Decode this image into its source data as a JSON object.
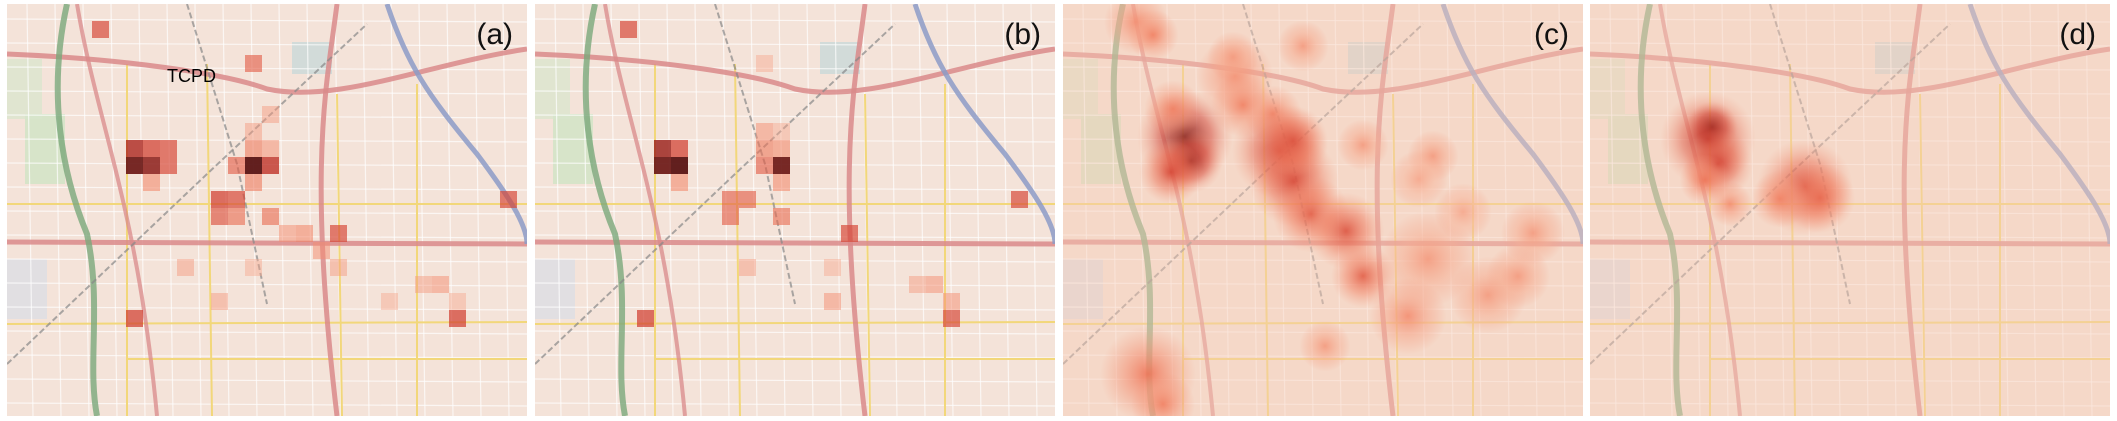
{
  "panels": [
    {
      "id": "a",
      "label": "(a)",
      "annotation": "TCPD",
      "mode": "grid",
      "cells": [
        {
          "c": 5,
          "r": 1,
          "v": 0.55
        },
        {
          "c": 14,
          "r": 3,
          "v": 0.45
        },
        {
          "c": 15,
          "r": 6,
          "v": 0.2
        },
        {
          "c": 14,
          "r": 7,
          "v": 0.2
        },
        {
          "c": 15,
          "r": 8,
          "v": 0.25
        },
        {
          "c": 7,
          "r": 8,
          "v": 0.75
        },
        {
          "c": 8,
          "r": 8,
          "v": 0.6
        },
        {
          "c": 9,
          "r": 8,
          "v": 0.55
        },
        {
          "c": 14,
          "r": 8,
          "v": 0.35
        },
        {
          "c": 7,
          "r": 9,
          "v": 0.95
        },
        {
          "c": 8,
          "r": 9,
          "v": 0.85
        },
        {
          "c": 9,
          "r": 9,
          "v": 0.55
        },
        {
          "c": 13,
          "r": 9,
          "v": 0.45
        },
        {
          "c": 14,
          "r": 9,
          "v": 1.0
        },
        {
          "c": 15,
          "r": 9,
          "v": 0.7
        },
        {
          "c": 8,
          "r": 10,
          "v": 0.3
        },
        {
          "c": 14,
          "r": 10,
          "v": 0.35
        },
        {
          "c": 12,
          "r": 11,
          "v": 0.6
        },
        {
          "c": 13,
          "r": 11,
          "v": 0.55
        },
        {
          "c": 29,
          "r": 11,
          "v": 0.55
        },
        {
          "c": 12,
          "r": 12,
          "v": 0.5
        },
        {
          "c": 13,
          "r": 12,
          "v": 0.4
        },
        {
          "c": 15,
          "r": 12,
          "v": 0.4
        },
        {
          "c": 16,
          "r": 13,
          "v": 0.25
        },
        {
          "c": 17,
          "r": 13,
          "v": 0.3
        },
        {
          "c": 19,
          "r": 13,
          "v": 0.55
        },
        {
          "c": 18,
          "r": 14,
          "v": 0.25
        },
        {
          "c": 10,
          "r": 15,
          "v": 0.2
        },
        {
          "c": 14,
          "r": 15,
          "v": 0.15
        },
        {
          "c": 19,
          "r": 15,
          "v": 0.2
        },
        {
          "c": 24,
          "r": 16,
          "v": 0.2
        },
        {
          "c": 25,
          "r": 16,
          "v": 0.25
        },
        {
          "c": 12,
          "r": 17,
          "v": 0.2
        },
        {
          "c": 22,
          "r": 17,
          "v": 0.15
        },
        {
          "c": 26,
          "r": 17,
          "v": 0.15
        },
        {
          "c": 7,
          "r": 18,
          "v": 0.6
        },
        {
          "c": 26,
          "r": 18,
          "v": 0.6
        }
      ]
    },
    {
      "id": "b",
      "label": "(b)",
      "annotation": "",
      "mode": "grid",
      "cells": [
        {
          "c": 5,
          "r": 1,
          "v": 0.55
        },
        {
          "c": 13,
          "r": 3,
          "v": 0.15
        },
        {
          "c": 13,
          "r": 7,
          "v": 0.25
        },
        {
          "c": 14,
          "r": 7,
          "v": 0.15
        },
        {
          "c": 7,
          "r": 8,
          "v": 0.8
        },
        {
          "c": 8,
          "r": 8,
          "v": 0.6
        },
        {
          "c": 13,
          "r": 8,
          "v": 0.35
        },
        {
          "c": 14,
          "r": 8,
          "v": 0.3
        },
        {
          "c": 7,
          "r": 9,
          "v": 0.95
        },
        {
          "c": 8,
          "r": 9,
          "v": 1.0
        },
        {
          "c": 13,
          "r": 9,
          "v": 0.45
        },
        {
          "c": 14,
          "r": 9,
          "v": 0.95
        },
        {
          "c": 8,
          "r": 10,
          "v": 0.3
        },
        {
          "c": 14,
          "r": 10,
          "v": 0.3
        },
        {
          "c": 11,
          "r": 11,
          "v": 0.45
        },
        {
          "c": 12,
          "r": 11,
          "v": 0.45
        },
        {
          "c": 28,
          "r": 11,
          "v": 0.55
        },
        {
          "c": 11,
          "r": 12,
          "v": 0.45
        },
        {
          "c": 14,
          "r": 12,
          "v": 0.4
        },
        {
          "c": 18,
          "r": 13,
          "v": 0.55
        },
        {
          "c": 12,
          "r": 15,
          "v": 0.2
        },
        {
          "c": 17,
          "r": 15,
          "v": 0.15
        },
        {
          "c": 22,
          "r": 16,
          "v": 0.2
        },
        {
          "c": 23,
          "r": 16,
          "v": 0.25
        },
        {
          "c": 17,
          "r": 17,
          "v": 0.25
        },
        {
          "c": 24,
          "r": 17,
          "v": 0.25
        },
        {
          "c": 6,
          "r": 18,
          "v": 0.6
        },
        {
          "c": 24,
          "r": 18,
          "v": 0.55
        }
      ]
    },
    {
      "id": "c",
      "label": "(c)",
      "annotation": "",
      "mode": "heat",
      "spots": [
        {
          "x": 73,
          "y": 18,
          "s": 20,
          "v": 0.25
        },
        {
          "x": 90,
          "y": 31,
          "s": 16,
          "v": 0.3
        },
        {
          "x": 122,
          "y": 133,
          "s": 30,
          "v": 0.9
        },
        {
          "x": 128,
          "y": 157,
          "s": 20,
          "v": 0.8
        },
        {
          "x": 108,
          "y": 168,
          "s": 20,
          "v": 0.55
        },
        {
          "x": 110,
          "y": 105,
          "s": 18,
          "v": 0.3
        },
        {
          "x": 172,
          "y": 72,
          "s": 24,
          "v": 0.25
        },
        {
          "x": 180,
          "y": 101,
          "s": 20,
          "v": 0.3
        },
        {
          "x": 210,
          "y": 110,
          "s": 18,
          "v": 0.3
        },
        {
          "x": 217,
          "y": 147,
          "s": 30,
          "v": 0.65
        },
        {
          "x": 231,
          "y": 178,
          "s": 28,
          "v": 0.55
        },
        {
          "x": 248,
          "y": 210,
          "s": 24,
          "v": 0.45
        },
        {
          "x": 283,
          "y": 227,
          "s": 24,
          "v": 0.5
        },
        {
          "x": 300,
          "y": 272,
          "s": 20,
          "v": 0.45
        },
        {
          "x": 170,
          "y": 53,
          "s": 16,
          "v": 0.2
        },
        {
          "x": 240,
          "y": 42,
          "s": 16,
          "v": 0.2
        },
        {
          "x": 230,
          "y": 137,
          "s": 22,
          "v": 0.5
        },
        {
          "x": 300,
          "y": 141,
          "s": 16,
          "v": 0.2
        },
        {
          "x": 370,
          "y": 152,
          "s": 16,
          "v": 0.2
        },
        {
          "x": 365,
          "y": 255,
          "s": 30,
          "v": 0.2
        },
        {
          "x": 425,
          "y": 291,
          "s": 24,
          "v": 0.2
        },
        {
          "x": 455,
          "y": 272,
          "s": 20,
          "v": 0.2
        },
        {
          "x": 345,
          "y": 312,
          "s": 24,
          "v": 0.25
        },
        {
          "x": 262,
          "y": 342,
          "s": 16,
          "v": 0.2
        },
        {
          "x": 85,
          "y": 370,
          "s": 30,
          "v": 0.35
        },
        {
          "x": 100,
          "y": 400,
          "s": 20,
          "v": 0.3
        },
        {
          "x": 470,
          "y": 229,
          "s": 20,
          "v": 0.2
        },
        {
          "x": 356,
          "y": 175,
          "s": 18,
          "v": 0.15
        },
        {
          "x": 400,
          "y": 208,
          "s": 18,
          "v": 0.15
        }
      ]
    },
    {
      "id": "d",
      "label": "(d)",
      "annotation": "",
      "mode": "heat",
      "spots": [
        {
          "x": 122,
          "y": 123,
          "s": 16,
          "v": 1.0
        },
        {
          "x": 118,
          "y": 135,
          "s": 30,
          "v": 0.7
        },
        {
          "x": 128,
          "y": 160,
          "s": 22,
          "v": 0.6
        },
        {
          "x": 115,
          "y": 176,
          "s": 16,
          "v": 0.35
        },
        {
          "x": 140,
          "y": 200,
          "s": 14,
          "v": 0.25
        },
        {
          "x": 215,
          "y": 183,
          "s": 30,
          "v": 0.55
        },
        {
          "x": 230,
          "y": 194,
          "s": 22,
          "v": 0.4
        },
        {
          "x": 190,
          "y": 195,
          "s": 18,
          "v": 0.3
        }
      ]
    }
  ]
}
